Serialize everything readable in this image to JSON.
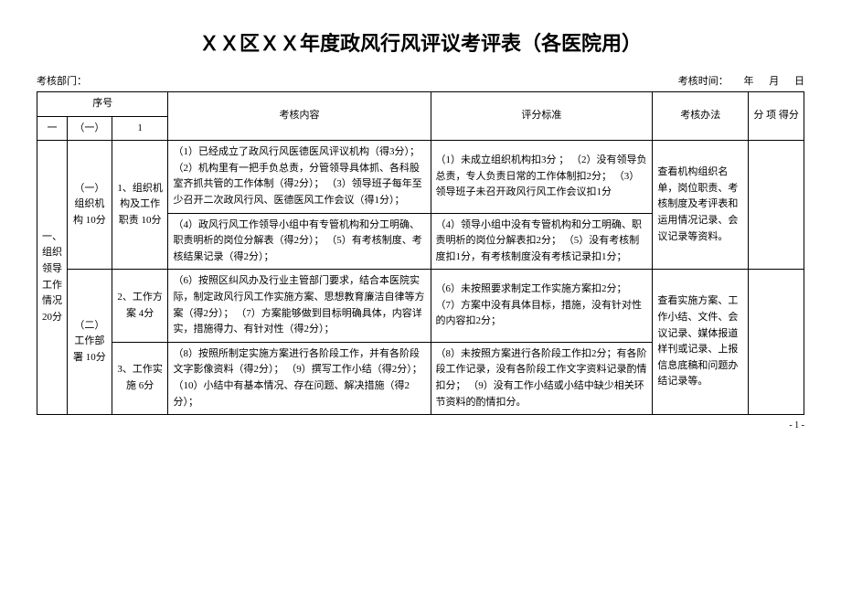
{
  "title": "ＸＸ区ＸＸ年度政风行风评议考评表（各医院用）",
  "meta": {
    "left": "考核部门：",
    "right_label": "考核时间：",
    "year": "年",
    "month": "月",
    "day": "日"
  },
  "headers": {
    "seq": "序号",
    "h1": "一",
    "h2": "（一）",
    "h3": "1",
    "content": "考核内容",
    "standard": "评分标准",
    "method": "考核办法",
    "score": "分 项 得分"
  },
  "col1": "一、组织领导工作情况 20分",
  "section1": {
    "label": "（一）组织机构 10分",
    "item1": {
      "label": "1、组织机构及工作职责 10分",
      "content_a": "（1）已经成立了政风行风医德医风评议机构（得3分）；\n（2）机构里有一把手负总责，分管领导具体抓、各科股室齐抓共管的工作体制（得2分）；\n（3）领导班子每年至少召开二次政风行风、医德医风工作会议（得1分）；",
      "standard_a": "（1）未成立组织机构扣3分 ；\n（2）没有领导负总责，专人负责日常的工作体制扣2分；\n（3）领导班子未召开政风行风工作会议扣1分",
      "content_b": "（4）政风行风工作领导小组中有专管机构和分工明确、职责明析的岗位分解表（得2分）；\n（5）有考核制度、考核结果记录（得2分）；",
      "standard_b": "（4）领导小组中没有专管机构和分工明确、职责明析的岗位分解表扣2分；\n（5）没有考核制度扣1分，有考核制度没有考核记录扣1分；"
    },
    "method": "查看机构组织名单，岗位职责、考核制度及考评表和运用情况记录、会议记录等资料。"
  },
  "section2": {
    "label": "（二）工作部署 10分",
    "item2": {
      "label": "2、工作方案 4分",
      "content": "（6）按照区纠风办及行业主管部门要求，结合本医院实际，制定政风行风工作实施方案、思想教育廉洁自律等方案（得2分）；\n（7）方案能够做到目标明确具体，内容详实，措施得力、有针对性（得2分）；",
      "standard": "（6）未按照要求制定工作实施方案扣2分；\n（7）方案中没有具体目标，措施，没有针对性的内容扣2分；"
    },
    "item3": {
      "label": "3、工作实施 6分",
      "content": "（8）按照所制定实施方案进行各阶段工作，并有各阶段文字影像资料（得2分）；\n（9）撰写工作小结（得2分）；（10）小结中有基本情况、存在问题、解决措施（得2分）；",
      "standard": "（8）未按照方案进行各阶段工作扣2分；有各阶段工作记录，没有各阶段工作文字资料记录酌情扣分；\n（9）没有工作小结或小结中缺少相关环节资料的酌情扣分。"
    },
    "method": "查看实施方案、工作小结、文件、会议记录、媒体报道样刊或记录、上报信息底稿和问题办结记录等。"
  },
  "page": "- 1 -"
}
